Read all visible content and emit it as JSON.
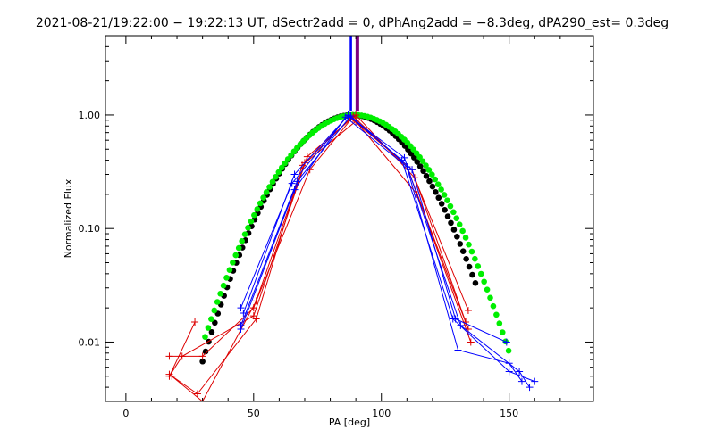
{
  "chart_data": {
    "type": "line",
    "title": "2021-08-21/19:22:00 − 19:22:13 UT, dSectr2add = 0, dPhAng2add = −8.3deg, dPA290_est=  0.3deg",
    "xlabel": "PA [deg]",
    "ylabel": "Normalized Flux",
    "xlim": [
      -8,
      183
    ],
    "ylim": [
      0.003,
      5.0
    ],
    "yscale": "log",
    "grid": false,
    "x_ticks": [
      {
        "value": 0,
        "label": "0"
      },
      {
        "value": 50,
        "label": "50"
      },
      {
        "value": 100,
        "label": "100"
      },
      {
        "value": 150,
        "label": "150"
      }
    ],
    "y_ticks": [
      {
        "value": 0.01,
        "label": "0.01"
      },
      {
        "value": 0.1,
        "label": "0.10"
      },
      {
        "value": 1.0,
        "label": "1.00"
      }
    ],
    "vertical_lines": [
      {
        "x": 88.3,
        "color": "#0000ff"
      },
      {
        "x": 89.2,
        "color": "#ffffff"
      },
      {
        "x": 90.6,
        "color": "#7f007f"
      }
    ],
    "fit_curves": [
      {
        "color": "#000000",
        "center": 88.5,
        "sigma": 18.5,
        "x_range": [
          30,
          138
        ]
      },
      {
        "color": "#00ee00",
        "center": 89.5,
        "sigma": 19.5,
        "x_range": [
          31,
          150
        ]
      }
    ],
    "series": [
      {
        "color": "#dd0000",
        "marker": "plus",
        "points": [
          [
            27,
            0.015
          ],
          [
            17,
            0.005
          ],
          [
            22,
            0.0075
          ],
          [
            50,
            0.017
          ],
          [
            71,
            0.43
          ],
          [
            90,
            1.0
          ],
          [
            113,
            0.28
          ],
          [
            134,
            0.019
          ]
        ]
      },
      {
        "color": "#dd0000",
        "marker": "plus",
        "points": [
          [
            17,
            0.0075
          ],
          [
            30,
            0.0075
          ],
          [
            50,
            0.02
          ],
          [
            70,
            0.38
          ],
          [
            88,
            0.94
          ],
          [
            112,
            0.33
          ],
          [
            133,
            0.015
          ]
        ]
      },
      {
        "color": "#dd0000",
        "marker": "plus",
        "points": [
          [
            17,
            0.0052
          ],
          [
            28,
            0.0035
          ],
          [
            51,
            0.016
          ],
          [
            69,
            0.36
          ],
          [
            90,
            0.88
          ],
          [
            114,
            0.2
          ],
          [
            135,
            0.01
          ]
        ]
      },
      {
        "color": "#dd0000",
        "marker": "plus",
        "points": [
          [
            18,
            0.005
          ],
          [
            30,
            0.003
          ],
          [
            51,
            0.023
          ],
          [
            72,
            0.33
          ],
          [
            89,
            0.97
          ],
          [
            110,
            0.35
          ],
          [
            134,
            0.013
          ]
        ]
      },
      {
        "color": "#0000ff",
        "marker": "plus",
        "points": [
          [
            45,
            0.02
          ],
          [
            65,
            0.25
          ],
          [
            87,
            1.0
          ],
          [
            108,
            0.4
          ],
          [
            128,
            0.016
          ],
          [
            150,
            0.0055
          ],
          [
            160,
            0.0045
          ]
        ]
      },
      {
        "color": "#0000ff",
        "marker": "plus",
        "points": [
          [
            45,
            0.013
          ],
          [
            66,
            0.22
          ],
          [
            86,
            0.96
          ],
          [
            110,
            0.35
          ],
          [
            130,
            0.0085
          ],
          [
            150,
            0.0065
          ],
          [
            155,
            0.0045
          ]
        ]
      },
      {
        "color": "#0000ff",
        "marker": "plus",
        "points": [
          [
            45,
            0.014
          ],
          [
            67,
            0.26
          ],
          [
            88,
            0.98
          ],
          [
            112,
            0.33
          ],
          [
            129,
            0.016
          ],
          [
            149,
            0.01
          ]
        ]
      },
      {
        "color": "#0000ff",
        "marker": "plus",
        "points": [
          [
            46,
            0.018
          ],
          [
            66,
            0.3
          ],
          [
            87,
            0.99
          ],
          [
            109,
            0.42
          ],
          [
            131,
            0.014
          ],
          [
            154,
            0.0055
          ],
          [
            158,
            0.004
          ]
        ]
      }
    ]
  }
}
